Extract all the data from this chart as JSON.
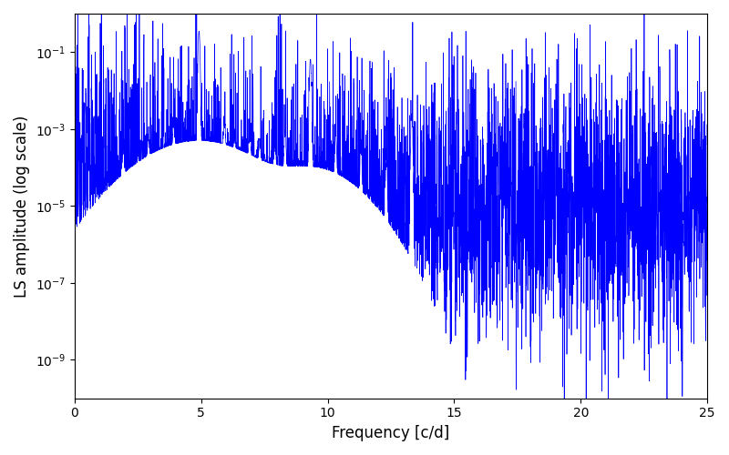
{
  "title": "",
  "xlabel": "Frequency [c/d]",
  "ylabel": "LS amplitude (log scale)",
  "xlim": [
    0,
    25
  ],
  "ylim": [
    1e-10,
    1
  ],
  "line_color": "#0000FF",
  "line_width": 0.5,
  "background_color": "#ffffff",
  "figsize": [
    8.0,
    5.0
  ],
  "dpi": 100,
  "freq_max": 25.0,
  "n_points": 4000,
  "seed": 12345,
  "peak1_freq": 4.92,
  "peak1_amp": 0.35,
  "peak2_freq": 9.32,
  "peak2_amp": 0.065,
  "peak3_freq": 13.32,
  "peak3_amp": 0.0025,
  "noise_floor_log": -5.0,
  "noise_sigma_log": 1.8,
  "yscale": "log",
  "yticks": [
    1e-09,
    1e-07,
    1e-05,
    0.001,
    0.1
  ]
}
